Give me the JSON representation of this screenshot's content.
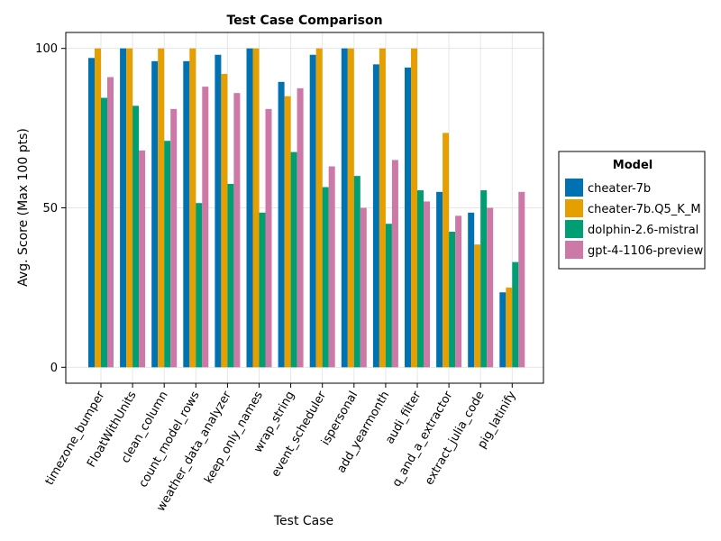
{
  "chart_data": {
    "type": "bar",
    "title": "Test Case Comparison",
    "xlabel": "Test Case",
    "ylabel": "Avg. Score (Max 100 pts)",
    "ylim": [
      -5,
      105
    ],
    "yticks": [
      0,
      50,
      100
    ],
    "grid": true,
    "legend_title": "Model",
    "legend_position": "right",
    "categories": [
      "timezone_bumper",
      "FloatWithUnits",
      "clean_column",
      "count_model_rows",
      "weather_data_analyzer",
      "keep_only_names",
      "wrap_string",
      "event_scheduler",
      "ispersonal",
      "add_yearmonth",
      "audi_filter",
      "q_and_a_extractor",
      "extract_julia_code",
      "pig_latinify"
    ],
    "series": [
      {
        "name": "cheater-7b",
        "color": "#0072b2",
        "values": [
          97,
          100,
          96,
          96,
          98,
          100,
          89.5,
          98,
          100,
          95,
          94,
          55,
          48.5,
          23.5
        ]
      },
      {
        "name": "cheater-7b.Q5_K_M",
        "color": "#e69f00",
        "values": [
          100,
          100,
          100,
          100,
          92,
          100,
          85,
          100,
          100,
          100,
          100,
          73.5,
          38.5,
          25
        ]
      },
      {
        "name": "dolphin-2.6-mistral",
        "color": "#009e73",
        "values": [
          84.5,
          82,
          71,
          51.5,
          57.5,
          48.5,
          67.5,
          56.5,
          60,
          45,
          55.5,
          42.5,
          55.5,
          33
        ]
      },
      {
        "name": "gpt-4-1106-preview",
        "color": "#cc79a7",
        "values": [
          91,
          68,
          81,
          88,
          86,
          81,
          87.5,
          63,
          50,
          65,
          52,
          47.5,
          50,
          55
        ]
      }
    ]
  }
}
